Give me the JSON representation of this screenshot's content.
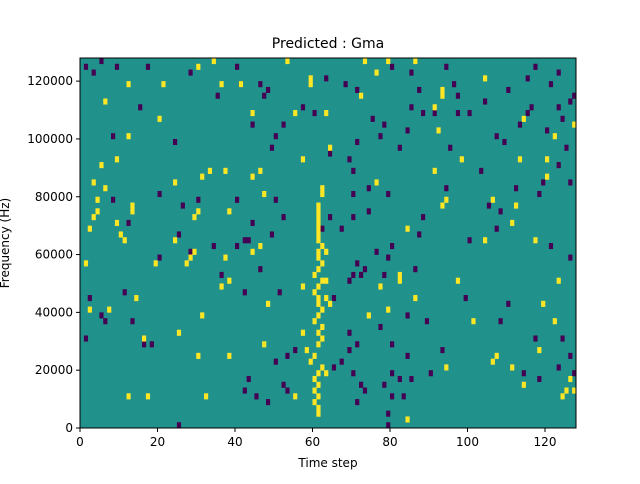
{
  "chart_data": {
    "type": "heatmap",
    "title": "Predicted : Gma",
    "xlabel": "Time step",
    "ylabel": "Frequency (Hz)",
    "xlim": [
      0,
      128
    ],
    "ylim": [
      0,
      128000
    ],
    "x_ticks": [
      0,
      20,
      40,
      60,
      80,
      100,
      120
    ],
    "y_ticks": [
      0,
      20000,
      40000,
      60000,
      80000,
      100000,
      120000
    ],
    "x_tick_labels": [
      "0",
      "20",
      "40",
      "60",
      "80",
      "100",
      "120"
    ],
    "y_tick_labels": [
      "0",
      "20000",
      "40000",
      "60000",
      "80000",
      "100000",
      "120000"
    ],
    "grid": false,
    "colormap": "viridis",
    "background_value": "teal",
    "colors": {
      "background": "#21918c",
      "high": "#fde725",
      "low": "#440154"
    },
    "cell_height_hz": 2000,
    "high_cells": [
      [
        61,
        4000
      ],
      [
        61,
        6000
      ],
      [
        60,
        8000
      ],
      [
        61,
        10000
      ],
      [
        60,
        12000
      ],
      [
        61,
        14000
      ],
      [
        60,
        16000
      ],
      [
        61,
        18000
      ],
      [
        62,
        20000
      ],
      [
        60,
        24000
      ],
      [
        61,
        28000
      ],
      [
        62,
        30000
      ],
      [
        61,
        32000
      ],
      [
        62,
        34000
      ],
      [
        60,
        36000
      ],
      [
        61,
        38000
      ],
      [
        62,
        40000
      ],
      [
        61,
        42000
      ],
      [
        61,
        44000
      ],
      [
        60,
        46000
      ],
      [
        61,
        48000
      ],
      [
        62,
        50000
      ],
      [
        60,
        52000
      ],
      [
        61,
        54000
      ],
      [
        62,
        56000
      ],
      [
        61,
        58000
      ],
      [
        61,
        60000
      ],
      [
        62,
        62000
      ],
      [
        61,
        64000
      ],
      [
        61,
        66000
      ],
      [
        61,
        68000
      ],
      [
        61,
        70000
      ],
      [
        61,
        72000
      ],
      [
        61,
        74000
      ],
      [
        61,
        76000
      ],
      [
        62,
        80000
      ],
      [
        62,
        82000
      ],
      [
        63,
        18000
      ],
      [
        59,
        22000
      ],
      [
        63,
        50000
      ],
      [
        64,
        42000
      ],
      [
        63,
        44000
      ],
      [
        84,
        2000
      ],
      [
        12,
        10000
      ],
      [
        17,
        10000
      ],
      [
        32,
        10000
      ],
      [
        55,
        10000
      ],
      [
        124,
        10000
      ],
      [
        125,
        12000
      ],
      [
        127,
        12000
      ],
      [
        126,
        16000
      ],
      [
        94,
        20000
      ],
      [
        106,
        22000
      ],
      [
        107,
        24000
      ],
      [
        114,
        14000
      ],
      [
        111,
        20000
      ],
      [
        118,
        26000
      ],
      [
        30,
        24000
      ],
      [
        38,
        24000
      ],
      [
        58,
        26000
      ],
      [
        47,
        28000
      ],
      [
        16,
        30000
      ],
      [
        25,
        32000
      ],
      [
        57,
        32000
      ],
      [
        101,
        36000
      ],
      [
        74,
        38000
      ],
      [
        7,
        40000
      ],
      [
        2,
        40000
      ],
      [
        31,
        38000
      ],
      [
        48,
        42000
      ],
      [
        86,
        44000
      ],
      [
        14,
        44000
      ],
      [
        79,
        40000
      ],
      [
        119,
        42000
      ],
      [
        122,
        36000
      ],
      [
        36,
        48000
      ],
      [
        57,
        48000
      ],
      [
        38,
        50000
      ],
      [
        77,
        48000
      ],
      [
        82,
        50000
      ],
      [
        82,
        52000
      ],
      [
        97,
        50000
      ],
      [
        123,
        50000
      ],
      [
        1,
        56000
      ],
      [
        19,
        56000
      ],
      [
        27,
        56000
      ],
      [
        28,
        58000
      ],
      [
        29,
        60000
      ],
      [
        37,
        58000
      ],
      [
        44,
        60000
      ],
      [
        46,
        62000
      ],
      [
        63,
        60000
      ],
      [
        9,
        70000
      ],
      [
        10,
        66000
      ],
      [
        11,
        64000
      ],
      [
        24,
        64000
      ],
      [
        84,
        68000
      ],
      [
        104,
        64000
      ],
      [
        117,
        64000
      ],
      [
        2,
        68000
      ],
      [
        3,
        72000
      ],
      [
        4,
        74000
      ],
      [
        4,
        78000
      ],
      [
        13,
        74000
      ],
      [
        13,
        76000
      ],
      [
        29,
        72000
      ],
      [
        30,
        74000
      ],
      [
        38,
        74000
      ],
      [
        47,
        80000
      ],
      [
        76,
        84000
      ],
      [
        91,
        88000
      ],
      [
        93,
        76000
      ],
      [
        94,
        78000
      ],
      [
        106,
        78000
      ],
      [
        111,
        70000
      ],
      [
        112,
        76000
      ],
      [
        120,
        86000
      ],
      [
        3,
        84000
      ],
      [
        5,
        90000
      ],
      [
        6,
        82000
      ],
      [
        9,
        92000
      ],
      [
        24,
        84000
      ],
      [
        31,
        86000
      ],
      [
        33,
        88000
      ],
      [
        37,
        88000
      ],
      [
        44,
        86000
      ],
      [
        46,
        88000
      ],
      [
        57,
        92000
      ],
      [
        113,
        92000
      ],
      [
        98,
        92000
      ],
      [
        12,
        100000
      ],
      [
        20,
        106000
      ],
      [
        44,
        108000
      ],
      [
        55,
        108000
      ],
      [
        63,
        108000
      ],
      [
        64,
        96000
      ],
      [
        72,
        114000
      ],
      [
        92,
        102000
      ],
      [
        114,
        106000
      ],
      [
        122,
        100000
      ],
      [
        127,
        104000
      ],
      [
        6,
        112000
      ],
      [
        12,
        118000
      ],
      [
        21,
        118000
      ],
      [
        30,
        124000
      ],
      [
        34,
        126000
      ],
      [
        36,
        118000
      ],
      [
        41,
        118000
      ],
      [
        53,
        126000
      ],
      [
        59,
        118000
      ],
      [
        59,
        120000
      ],
      [
        73,
        126000
      ],
      [
        76,
        122000
      ],
      [
        79,
        126000
      ],
      [
        86,
        126000
      ],
      [
        91,
        110000
      ],
      [
        93,
        114000
      ],
      [
        93,
        116000
      ],
      [
        104,
        120000
      ],
      [
        120,
        92000
      ]
    ],
    "low_cells": [
      [
        25,
        0
      ],
      [
        79,
        0
      ],
      [
        71,
        8000
      ],
      [
        73,
        12000
      ],
      [
        79,
        4000
      ],
      [
        80,
        10000
      ],
      [
        83,
        10000
      ],
      [
        42,
        12000
      ],
      [
        45,
        10000
      ],
      [
        48,
        8000
      ],
      [
        52,
        14000
      ],
      [
        53,
        12000
      ],
      [
        43,
        16000
      ],
      [
        72,
        14000
      ],
      [
        78,
        14000
      ],
      [
        82,
        16000
      ],
      [
        85,
        16000
      ],
      [
        70,
        18000
      ],
      [
        80,
        18000
      ],
      [
        90,
        18000
      ],
      [
        114,
        18000
      ],
      [
        118,
        16000
      ],
      [
        65,
        20000
      ],
      [
        67,
        22000
      ],
      [
        50,
        22000
      ],
      [
        53,
        24000
      ],
      [
        69,
        26000
      ],
      [
        84,
        24000
      ],
      [
        127,
        18000
      ],
      [
        123,
        20000
      ],
      [
        126,
        24000
      ],
      [
        55,
        26000
      ],
      [
        18,
        28000
      ],
      [
        71,
        28000
      ],
      [
        80,
        28000
      ],
      [
        93,
        26000
      ],
      [
        117,
        30000
      ],
      [
        69,
        32000
      ],
      [
        77,
        34000
      ],
      [
        124,
        30000
      ],
      [
        108,
        36000
      ],
      [
        84,
        38000
      ],
      [
        89,
        36000
      ],
      [
        13,
        36000
      ],
      [
        1,
        30000
      ],
      [
        5,
        38000
      ],
      [
        6,
        36000
      ],
      [
        16,
        28000
      ],
      [
        2,
        44000
      ],
      [
        11,
        46000
      ],
      [
        42,
        46000
      ],
      [
        51,
        46000
      ],
      [
        65,
        44000
      ],
      [
        99,
        44000
      ],
      [
        110,
        42000
      ],
      [
        36,
        52000
      ],
      [
        69,
        50000
      ],
      [
        70,
        52000
      ],
      [
        72,
        52000
      ],
      [
        73,
        54000
      ],
      [
        78,
        52000
      ],
      [
        46,
        54000
      ],
      [
        79,
        58000
      ],
      [
        71,
        56000
      ],
      [
        86,
        54000
      ],
      [
        126,
        58000
      ],
      [
        20,
        58000
      ],
      [
        28,
        60000
      ],
      [
        34,
        62000
      ],
      [
        40,
        62000
      ],
      [
        42,
        64000
      ],
      [
        43,
        64000
      ],
      [
        76,
        60000
      ],
      [
        87,
        66000
      ],
      [
        100,
        64000
      ],
      [
        121,
        62000
      ],
      [
        25,
        66000
      ],
      [
        49,
        66000
      ],
      [
        62,
        68000
      ],
      [
        67,
        68000
      ],
      [
        80,
        62000
      ],
      [
        107,
        68000
      ],
      [
        12,
        70000
      ],
      [
        44,
        70000
      ],
      [
        52,
        72000
      ],
      [
        64,
        72000
      ],
      [
        70,
        72000
      ],
      [
        74,
        74000
      ],
      [
        88,
        72000
      ],
      [
        108,
        74000
      ],
      [
        8,
        78000
      ],
      [
        20,
        80000
      ],
      [
        26,
        76000
      ],
      [
        30,
        78000
      ],
      [
        40,
        78000
      ],
      [
        50,
        78000
      ],
      [
        70,
        80000
      ],
      [
        74,
        82000
      ],
      [
        79,
        80000
      ],
      [
        94,
        82000
      ],
      [
        112,
        82000
      ],
      [
        118,
        80000
      ],
      [
        119,
        84000
      ],
      [
        123,
        90000
      ],
      [
        105,
        76000
      ],
      [
        103,
        88000
      ],
      [
        109,
        98000
      ],
      [
        113,
        104000
      ],
      [
        100,
        108000
      ],
      [
        97,
        108000
      ],
      [
        78,
        104000
      ],
      [
        71,
        116000
      ],
      [
        68,
        118000
      ],
      [
        60,
        108000
      ],
      [
        57,
        110000
      ],
      [
        48,
        116000
      ],
      [
        44,
        104000
      ],
      [
        40,
        124000
      ],
      [
        41,
        118000
      ],
      [
        63,
        120000
      ],
      [
        87,
        116000
      ],
      [
        91,
        108000
      ],
      [
        95,
        96000
      ],
      [
        107,
        100000
      ],
      [
        115,
        108000
      ],
      [
        116,
        110000
      ],
      [
        123,
        110000
      ],
      [
        124,
        106000
      ],
      [
        126,
        112000
      ],
      [
        127,
        114000
      ],
      [
        1,
        124000
      ],
      [
        3,
        122000
      ],
      [
        5,
        126000
      ],
      [
        9,
        124000
      ],
      [
        17,
        124000
      ],
      [
        28,
        122000
      ],
      [
        46,
        118000
      ],
      [
        47,
        114000
      ],
      [
        50,
        100000
      ],
      [
        49,
        96000
      ],
      [
        64,
        94000
      ],
      [
        71,
        98000
      ],
      [
        80,
        124000
      ],
      [
        85,
        122000
      ],
      [
        94,
        124000
      ],
      [
        117,
        124000
      ],
      [
        121,
        118000
      ],
      [
        8,
        100000
      ],
      [
        15,
        110000
      ],
      [
        24,
        98000
      ],
      [
        35,
        114000
      ],
      [
        85,
        110000
      ],
      [
        96,
        118000
      ],
      [
        123,
        122000
      ],
      [
        69,
        92000
      ],
      [
        70,
        88000
      ],
      [
        75,
        106000
      ],
      [
        77,
        100000
      ],
      [
        82,
        96000
      ],
      [
        84,
        102000
      ],
      [
        52,
        104000
      ],
      [
        88,
        108000
      ],
      [
        97,
        114000
      ],
      [
        104,
        112000
      ],
      [
        110,
        116000
      ],
      [
        115,
        120000
      ],
      [
        120,
        102000
      ],
      [
        125,
        96000
      ],
      [
        126,
        84000
      ]
    ]
  }
}
